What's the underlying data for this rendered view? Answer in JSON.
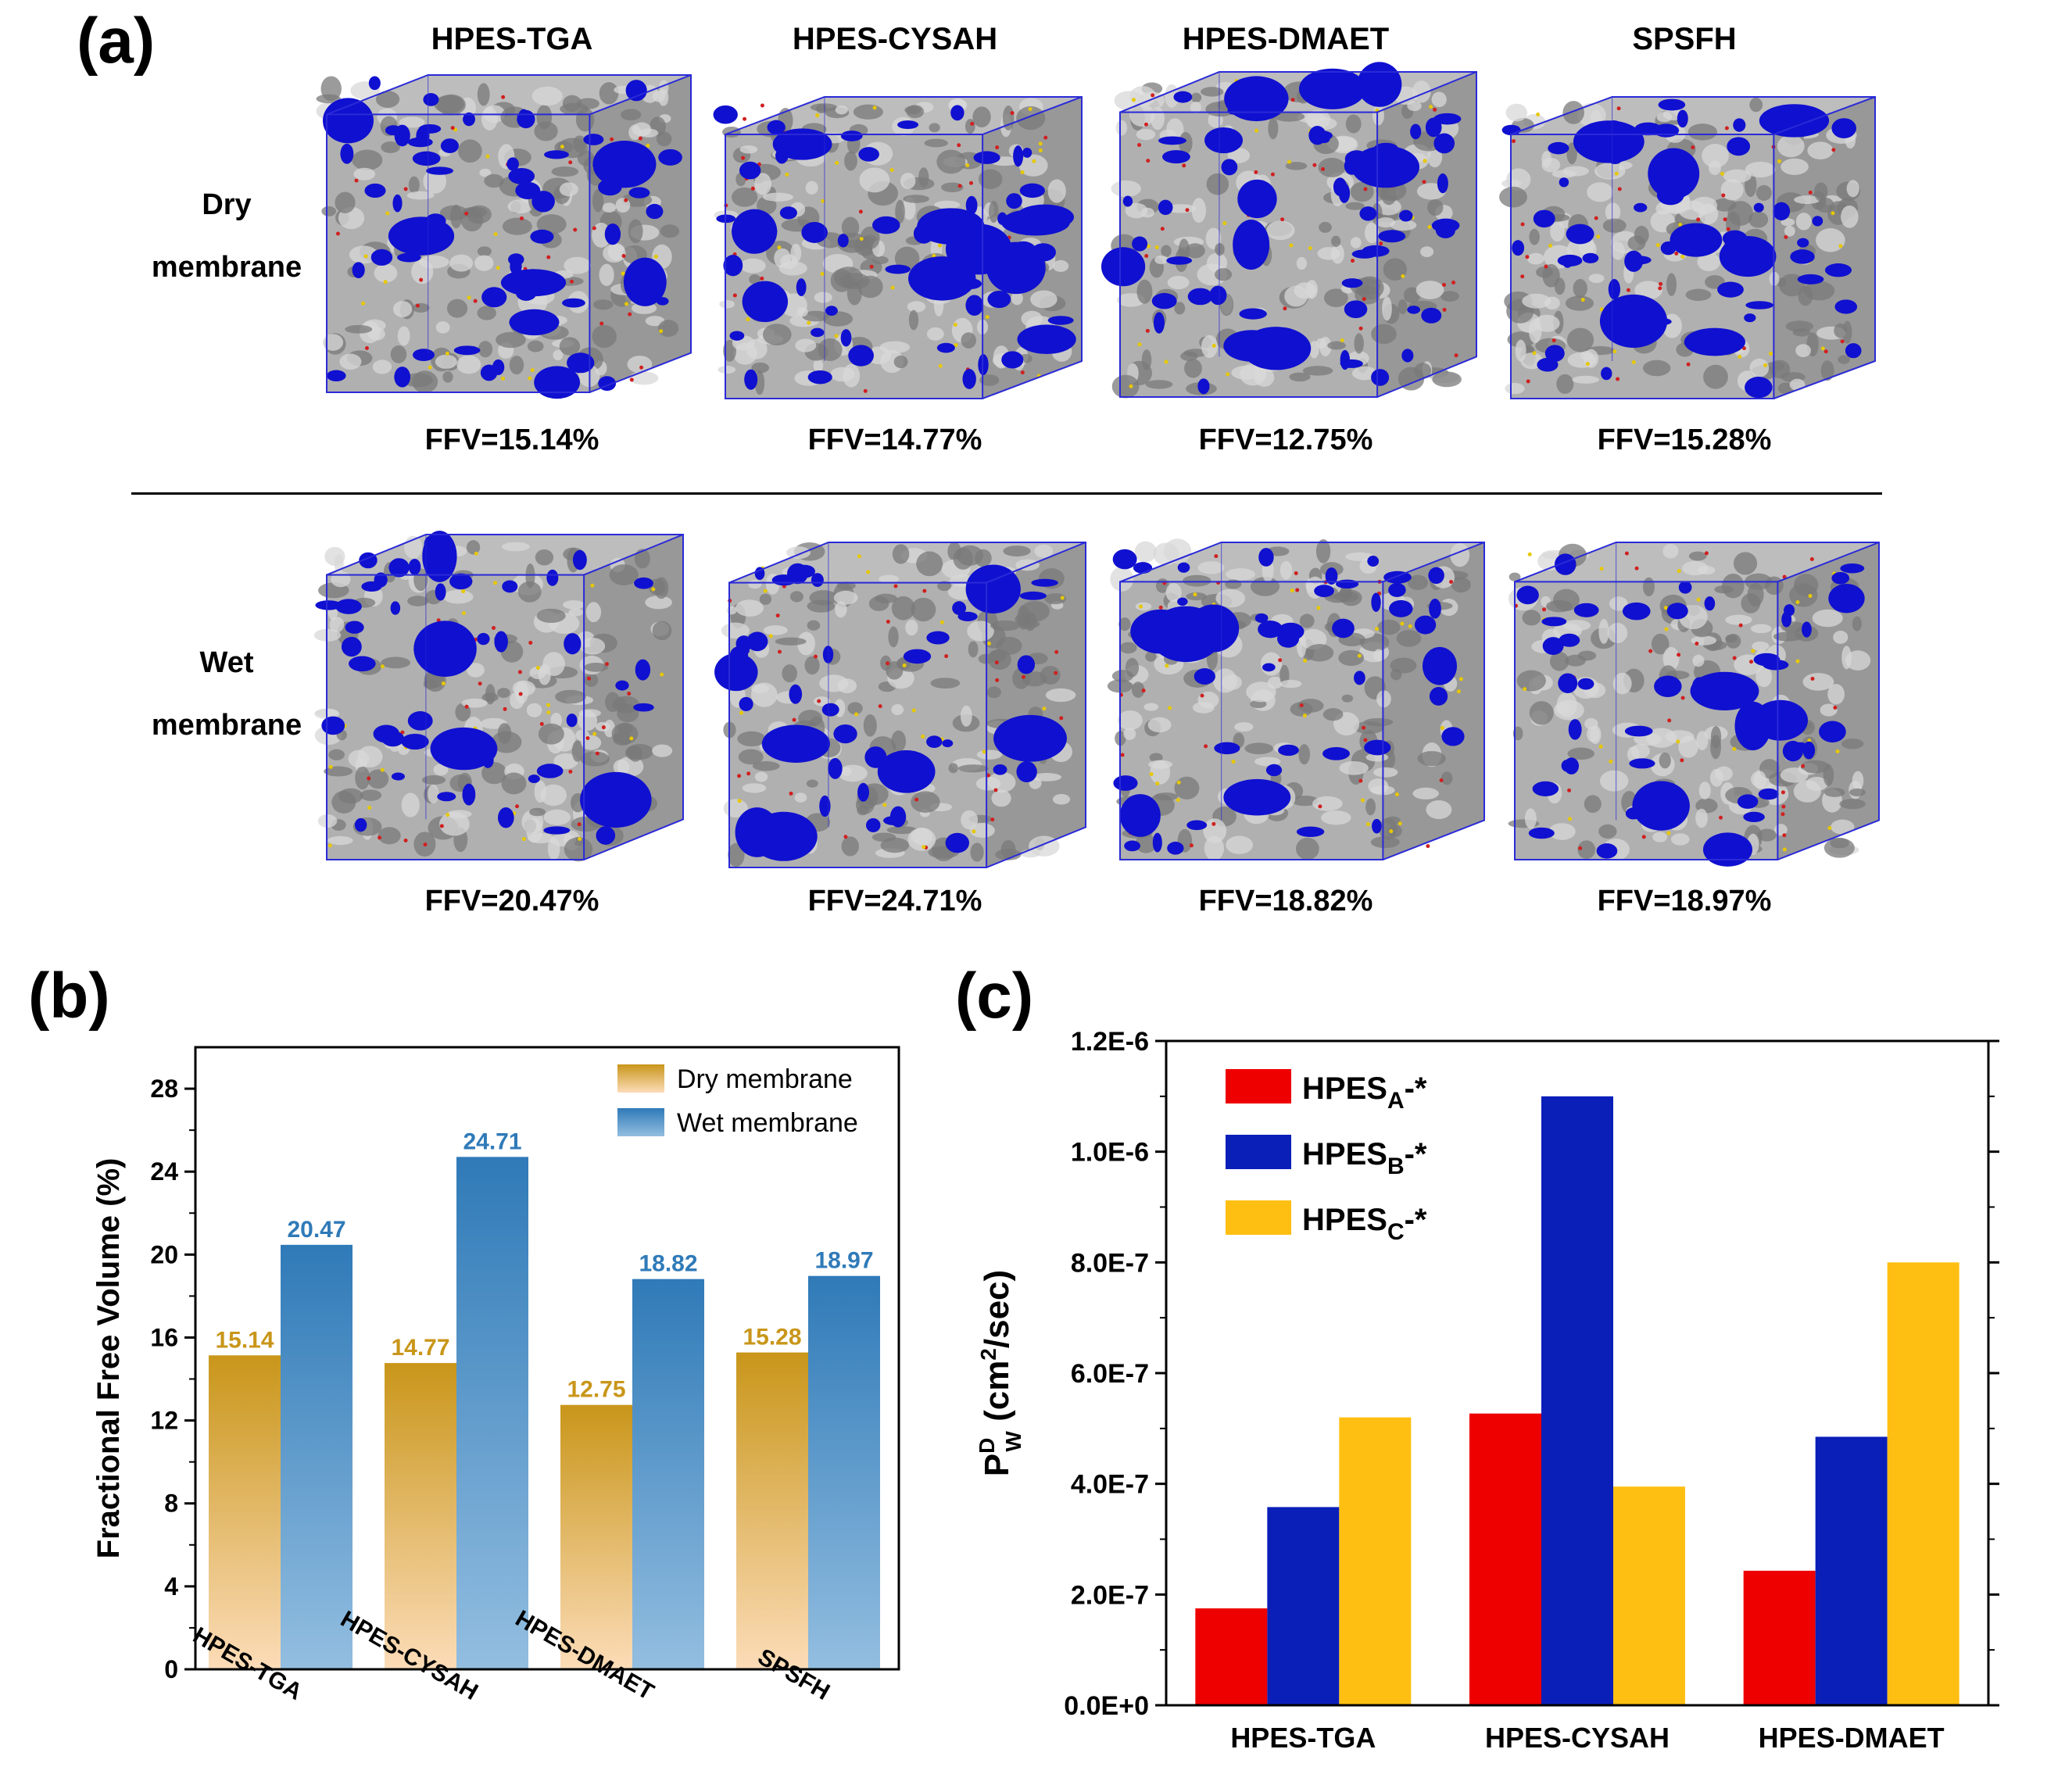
{
  "panel_a": {
    "label": "(a)",
    "columns": [
      "HPES-TGA",
      "HPES-CYSAH",
      "HPES-DMAET",
      "SPSFH"
    ],
    "rows": [
      {
        "label_line1": "Dry",
        "label_line2": "membrane",
        "ffv": [
          "FFV=15.14%",
          "FFV=14.77%",
          "FFV=12.75%",
          "FFV=15.28%"
        ]
      },
      {
        "label_line1": "Wet",
        "label_line2": "membrane",
        "ffv": [
          "FFV=20.47%",
          "FFV=24.71%",
          "FFV=18.82%",
          "FFV=18.97%"
        ]
      }
    ],
    "colors": {
      "free_volume": "#1010d0",
      "polymer": "#a8a8a8",
      "box_edge": "#2a2ad8"
    }
  },
  "chart_data": [
    {
      "panel": "(b)",
      "type": "bar",
      "categories": [
        "HPES-TGA",
        "HPES-CYSAH",
        "HPES-DMAET",
        "SPSFH"
      ],
      "series": [
        {
          "name": "Dry membrane",
          "values": [
            15.14,
            14.77,
            12.75,
            15.28
          ],
          "labels": [
            "15.14",
            "14.77",
            "12.75",
            "15.28"
          ],
          "color_top": "#c9961a",
          "color_bottom": "#fcdcb8",
          "label_color": "#c9961a"
        },
        {
          "name": "Wet membrane",
          "values": [
            20.47,
            24.71,
            18.82,
            18.97
          ],
          "labels": [
            "20.47",
            "24.71",
            "18.82",
            "18.97"
          ],
          "color_top": "#2f7ab8",
          "color_bottom": "#93bee0",
          "label_color": "#2f7ab8"
        }
      ],
      "ylabel": "Fractional Free Volume (%)",
      "yticks": [
        "0",
        "4",
        "8",
        "12",
        "16",
        "20",
        "24",
        "28"
      ],
      "ylim": [
        0,
        30
      ],
      "legend_position": "top-right"
    },
    {
      "panel": "(c)",
      "type": "bar",
      "categories": [
        "HPES-TGA",
        "HPES-CYSAH",
        "HPES-DMAET"
      ],
      "series": [
        {
          "name_main": "HPES",
          "name_sub": "A",
          "name_tail": "-*",
          "values": [
            1.75e-07,
            5.27e-07,
            2.43e-07
          ],
          "color": "#ee0000"
        },
        {
          "name_main": "HPES",
          "name_sub": "B",
          "name_tail": "-*",
          "values": [
            3.58e-07,
            1.1e-06,
            4.85e-07
          ],
          "color": "#0a1eb8"
        },
        {
          "name_main": "HPES",
          "name_sub": "C",
          "name_tail": "-*",
          "values": [
            5.2e-07,
            3.95e-07,
            8e-07
          ],
          "color": "#ffbf12"
        }
      ],
      "ylabel_main": "P",
      "ylabel_sup": "D",
      "ylabel_sub": "W",
      "ylabel_rest": " (cm",
      "ylabel_pow": "2",
      "ylabel_end": "/sec)",
      "yticks": [
        "0.0E+0",
        "2.0E-7",
        "4.0E-7",
        "6.0E-7",
        "8.0E-7",
        "1.0E-6",
        "1.2E-6"
      ],
      "ylim": [
        0,
        1.2e-06
      ],
      "legend_position": "top-left"
    }
  ]
}
